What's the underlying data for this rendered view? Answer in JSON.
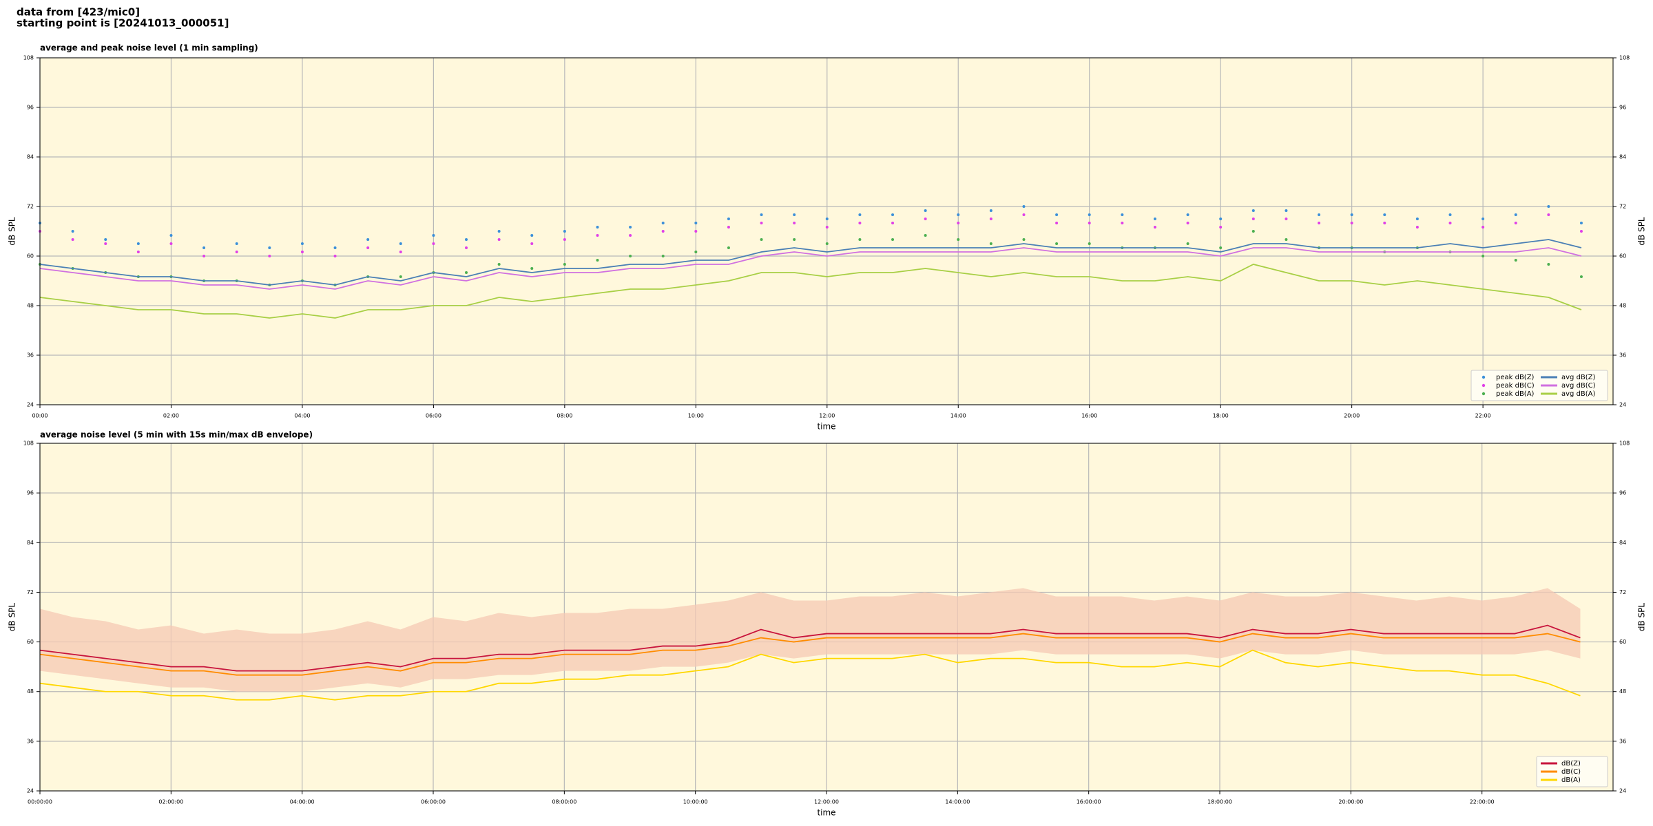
{
  "header": [
    "data from [423/mic0]",
    "starting point is [20241013_000051]"
  ],
  "chart_data": [
    {
      "type": "line",
      "title": "average and peak noise level (1 min sampling)",
      "xlabel": "time",
      "ylabel": "dB SPL",
      "x": [
        "00:00",
        "00:30",
        "01:00",
        "01:30",
        "02:00",
        "02:30",
        "03:00",
        "03:30",
        "04:00",
        "04:30",
        "05:00",
        "05:30",
        "06:00",
        "06:30",
        "07:00",
        "07:30",
        "08:00",
        "08:30",
        "09:00",
        "09:30",
        "10:00",
        "10:30",
        "11:00",
        "11:30",
        "12:00",
        "12:30",
        "13:00",
        "13:30",
        "14:00",
        "14:30",
        "15:00",
        "15:30",
        "16:00",
        "16:30",
        "17:00",
        "17:30",
        "18:00",
        "18:30",
        "19:00",
        "19:30",
        "20:00",
        "20:30",
        "21:00",
        "21:30",
        "22:00",
        "22:30",
        "23:00",
        "23:30"
      ],
      "xlim": [
        "00:00",
        "23:59"
      ],
      "xticks": [
        "00:00",
        "02:00",
        "04:00",
        "06:00",
        "08:00",
        "10:00",
        "12:00",
        "14:00",
        "16:00",
        "18:00",
        "20:00",
        "22:00"
      ],
      "ylim": [
        24,
        108
      ],
      "yticks": [
        24,
        36,
        48,
        60,
        72,
        84,
        96,
        108
      ],
      "grid": true,
      "legend": "lower right",
      "legend_columns": 2,
      "series": [
        {
          "name": "peak dB(Z)",
          "style": "dots",
          "color": "#3b8fd9",
          "values": [
            68,
            66,
            64,
            63,
            65,
            62,
            63,
            62,
            63,
            62,
            64,
            63,
            65,
            64,
            66,
            65,
            66,
            67,
            67,
            68,
            68,
            69,
            70,
            70,
            69,
            70,
            70,
            71,
            70,
            71,
            72,
            70,
            70,
            70,
            69,
            70,
            69,
            71,
            71,
            70,
            70,
            70,
            69,
            70,
            69,
            70,
            72,
            68
          ]
        },
        {
          "name": "peak dB(C)",
          "style": "dots",
          "color": "#e040e8",
          "values": [
            66,
            64,
            63,
            61,
            63,
            60,
            61,
            60,
            61,
            60,
            62,
            61,
            63,
            62,
            64,
            63,
            64,
            65,
            65,
            66,
            66,
            67,
            68,
            68,
            67,
            68,
            68,
            69,
            68,
            69,
            70,
            68,
            68,
            68,
            67,
            68,
            67,
            69,
            69,
            68,
            68,
            68,
            67,
            68,
            67,
            68,
            70,
            66
          ]
        },
        {
          "name": "peak dB(A)",
          "style": "dots",
          "color": "#4caf50",
          "values": [
            58,
            57,
            56,
            55,
            55,
            54,
            54,
            53,
            54,
            53,
            55,
            55,
            56,
            56,
            58,
            57,
            58,
            59,
            60,
            60,
            61,
            62,
            64,
            64,
            63,
            64,
            64,
            65,
            64,
            63,
            64,
            63,
            63,
            62,
            62,
            63,
            62,
            66,
            64,
            62,
            62,
            61,
            62,
            61,
            60,
            59,
            58,
            55
          ]
        },
        {
          "name": "avg dB(Z)",
          "style": "line",
          "color": "#4a7fb5",
          "values": [
            58,
            57,
            56,
            55,
            55,
            54,
            54,
            53,
            54,
            53,
            55,
            54,
            56,
            55,
            57,
            56,
            57,
            57,
            58,
            58,
            59,
            59,
            61,
            62,
            61,
            62,
            62,
            62,
            62,
            62,
            63,
            62,
            62,
            62,
            62,
            62,
            61,
            63,
            63,
            62,
            62,
            62,
            62,
            63,
            62,
            63,
            64,
            62
          ]
        },
        {
          "name": "avg dB(C)",
          "style": "line",
          "color": "#d070e0",
          "values": [
            57,
            56,
            55,
            54,
            54,
            53,
            53,
            52,
            53,
            52,
            54,
            53,
            55,
            54,
            56,
            55,
            56,
            56,
            57,
            57,
            58,
            58,
            60,
            61,
            60,
            61,
            61,
            61,
            61,
            61,
            62,
            61,
            61,
            61,
            61,
            61,
            60,
            62,
            62,
            61,
            61,
            61,
            61,
            61,
            61,
            61,
            62,
            60
          ]
        },
        {
          "name": "avg dB(A)",
          "style": "line",
          "color": "#a8cf45",
          "values": [
            50,
            49,
            48,
            47,
            47,
            46,
            46,
            45,
            46,
            45,
            47,
            47,
            48,
            48,
            50,
            49,
            50,
            51,
            52,
            52,
            53,
            54,
            56,
            56,
            55,
            56,
            56,
            57,
            56,
            55,
            56,
            55,
            55,
            54,
            54,
            55,
            54,
            58,
            56,
            54,
            54,
            53,
            54,
            53,
            52,
            51,
            50,
            47
          ]
        }
      ]
    },
    {
      "type": "line",
      "title": "average noise level (5 min with 15s min/max dB envelope)",
      "xlabel": "time",
      "ylabel": "dB SPL",
      "x": [
        "00:00:00",
        "00:30:00",
        "01:00:00",
        "01:30:00",
        "02:00:00",
        "02:30:00",
        "03:00:00",
        "03:30:00",
        "04:00:00",
        "04:30:00",
        "05:00:00",
        "05:30:00",
        "06:00:00",
        "06:30:00",
        "07:00:00",
        "07:30:00",
        "08:00:00",
        "08:30:00",
        "09:00:00",
        "09:30:00",
        "10:00:00",
        "10:30:00",
        "11:00:00",
        "11:30:00",
        "12:00:00",
        "12:30:00",
        "13:00:00",
        "13:30:00",
        "14:00:00",
        "14:30:00",
        "15:00:00",
        "15:30:00",
        "16:00:00",
        "16:30:00",
        "17:00:00",
        "17:30:00",
        "18:00:00",
        "18:30:00",
        "19:00:00",
        "19:30:00",
        "20:00:00",
        "20:30:00",
        "21:00:00",
        "21:30:00",
        "22:00:00",
        "22:30:00",
        "23:00:00",
        "23:30:00"
      ],
      "xlim": [
        "00:00:00",
        "23:59:59"
      ],
      "xticks": [
        "00:00:00",
        "02:00:00",
        "04:00:00",
        "06:00:00",
        "08:00:00",
        "10:00:00",
        "12:00:00",
        "14:00:00",
        "16:00:00",
        "18:00:00",
        "20:00:00",
        "22:00:00"
      ],
      "ylim": [
        24,
        108
      ],
      "yticks": [
        24,
        36,
        48,
        60,
        72,
        84,
        96,
        108
      ],
      "grid": true,
      "legend": "lower right",
      "legend_columns": 1,
      "envelope": {
        "color": "#f6c9b4",
        "low": [
          53,
          52,
          51,
          50,
          49,
          49,
          48,
          48,
          48,
          49,
          50,
          49,
          51,
          51,
          52,
          52,
          53,
          53,
          53,
          54,
          54,
          55,
          57,
          56,
          57,
          57,
          57,
          57,
          57,
          57,
          58,
          57,
          57,
          57,
          57,
          57,
          56,
          58,
          57,
          57,
          58,
          57,
          57,
          57,
          57,
          57,
          58,
          56
        ],
        "high": [
          68,
          66,
          65,
          63,
          64,
          62,
          63,
          62,
          62,
          63,
          65,
          63,
          66,
          65,
          67,
          66,
          67,
          67,
          68,
          68,
          69,
          70,
          72,
          70,
          70,
          71,
          71,
          72,
          71,
          72,
          73,
          71,
          71,
          71,
          70,
          71,
          70,
          72,
          71,
          71,
          72,
          71,
          70,
          71,
          70,
          71,
          73,
          68
        ]
      },
      "series": [
        {
          "name": "dB(Z)",
          "style": "line",
          "color": "#c8143c",
          "values": [
            58,
            57,
            56,
            55,
            54,
            54,
            53,
            53,
            53,
            54,
            55,
            54,
            56,
            56,
            57,
            57,
            58,
            58,
            58,
            59,
            59,
            60,
            63,
            61,
            62,
            62,
            62,
            62,
            62,
            62,
            63,
            62,
            62,
            62,
            62,
            62,
            61,
            63,
            62,
            62,
            63,
            62,
            62,
            62,
            62,
            62,
            64,
            61
          ]
        },
        {
          "name": "dB(C)",
          "style": "line",
          "color": "#ff8c00",
          "values": [
            57,
            56,
            55,
            54,
            53,
            53,
            52,
            52,
            52,
            53,
            54,
            53,
            55,
            55,
            56,
            56,
            57,
            57,
            57,
            58,
            58,
            59,
            61,
            60,
            61,
            61,
            61,
            61,
            61,
            61,
            62,
            61,
            61,
            61,
            61,
            61,
            60,
            62,
            61,
            61,
            62,
            61,
            61,
            61,
            61,
            61,
            62,
            60
          ]
        },
        {
          "name": "dB(A)",
          "style": "line",
          "color": "#ffd700",
          "values": [
            50,
            49,
            48,
            48,
            47,
            47,
            46,
            46,
            47,
            46,
            47,
            47,
            48,
            48,
            50,
            50,
            51,
            51,
            52,
            52,
            53,
            54,
            57,
            55,
            56,
            56,
            56,
            57,
            55,
            56,
            56,
            55,
            55,
            54,
            54,
            55,
            54,
            58,
            55,
            54,
            55,
            54,
            53,
            53,
            52,
            52,
            50,
            47
          ]
        }
      ]
    }
  ]
}
